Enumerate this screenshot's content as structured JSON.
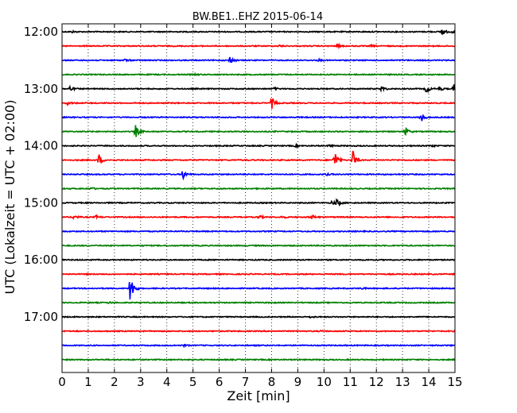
{
  "chart_data": {
    "type": "line",
    "title": "BW.BE1..EHZ 2015-06-14",
    "xlabel": "Zeit  [min]",
    "ylabel": "UTC (Lokalzeit = UTC + 02:00)",
    "xlim": [
      0,
      15
    ],
    "x_ticks": [
      "0",
      "1",
      "2",
      "3",
      "4",
      "5",
      "6",
      "7",
      "8",
      "9",
      "10",
      "11",
      "12",
      "13",
      "14",
      "15"
    ],
    "y_ticks": [
      "12:00",
      "13:00",
      "14:00",
      "15:00",
      "16:00",
      "17:00"
    ],
    "grid": "vertical dotted",
    "trace_interval_minutes": 15,
    "colors": [
      "#000000",
      "#ff0000",
      "#0000ff",
      "#008000"
    ],
    "series": [
      {
        "start": "12:00",
        "events": [
          {
            "t": 0.4,
            "amp": 0.12
          },
          {
            "t": 14.5,
            "amp": 0.55
          },
          {
            "t": 14.9,
            "amp": 0.15
          }
        ]
      },
      {
        "start": "12:15",
        "events": [
          {
            "t": 8.3,
            "amp": 0.12
          },
          {
            "t": 10.5,
            "amp": 0.25
          },
          {
            "t": 11.8,
            "amp": 0.1
          }
        ]
      },
      {
        "start": "12:30",
        "events": [
          {
            "t": 2.4,
            "amp": 0.15
          },
          {
            "t": 6.4,
            "amp": 0.55
          },
          {
            "t": 9.8,
            "amp": 0.12
          }
        ]
      },
      {
        "start": "12:45",
        "events": [
          {
            "t": 5.1,
            "amp": 0.08
          }
        ]
      },
      {
        "start": "13:00",
        "events": [
          {
            "t": 0.3,
            "amp": 0.35
          },
          {
            "t": 8.1,
            "amp": 0.15
          },
          {
            "t": 12.2,
            "amp": 0.4
          },
          {
            "t": 13.9,
            "amp": 0.6
          },
          {
            "t": 14.4,
            "amp": 0.3
          },
          {
            "t": 14.95,
            "amp": 0.7
          }
        ]
      },
      {
        "start": "13:15",
        "events": [
          {
            "t": 0.2,
            "amp": 0.25
          },
          {
            "t": 8.0,
            "amp": 0.85
          }
        ]
      },
      {
        "start": "13:30",
        "events": [
          {
            "t": 13.7,
            "amp": 0.75
          }
        ]
      },
      {
        "start": "13:45",
        "events": [
          {
            "t": 2.8,
            "amp": 0.95
          },
          {
            "t": 13.1,
            "amp": 0.6
          }
        ]
      },
      {
        "start": "14:00",
        "events": [
          {
            "t": 8.9,
            "amp": 0.12
          },
          {
            "t": 10.2,
            "amp": 0.15
          },
          {
            "t": 14.1,
            "amp": 0.15
          }
        ]
      },
      {
        "start": "14:15",
        "events": [
          {
            "t": 1.4,
            "amp": 0.8
          },
          {
            "t": 10.4,
            "amp": 1.5
          },
          {
            "t": 11.1,
            "amp": 1.4
          }
        ]
      },
      {
        "start": "14:30",
        "events": [
          {
            "t": 4.6,
            "amp": 0.8
          },
          {
            "t": 10.1,
            "amp": 0.12
          }
        ]
      },
      {
        "start": "14:45",
        "events": [
          {
            "t": 1.1,
            "amp": 0.18
          }
        ]
      },
      {
        "start": "15:00",
        "events": [
          {
            "t": 10.3,
            "amp": 0.3
          },
          {
            "t": 10.5,
            "amp": 0.5
          }
        ]
      },
      {
        "start": "15:15",
        "events": [
          {
            "t": 0.45,
            "amp": 0.3
          },
          {
            "t": 1.3,
            "amp": 0.2
          },
          {
            "t": 7.5,
            "amp": 0.3
          },
          {
            "t": 8.4,
            "amp": 0.2
          },
          {
            "t": 9.5,
            "amp": 0.45
          }
        ]
      },
      {
        "start": "15:30",
        "events": []
      },
      {
        "start": "15:45",
        "events": []
      },
      {
        "start": "16:00",
        "events": []
      },
      {
        "start": "16:15",
        "events": []
      },
      {
        "start": "16:30",
        "events": [
          {
            "t": 2.6,
            "amp": 2.3
          },
          {
            "t": 11.4,
            "amp": 0.15
          }
        ]
      },
      {
        "start": "16:45",
        "events": [
          {
            "t": 1.8,
            "amp": 0.1
          }
        ]
      },
      {
        "start": "17:00",
        "events": [
          {
            "t": 9.5,
            "amp": 0.12
          }
        ]
      },
      {
        "start": "17:15",
        "events": [
          {
            "t": 9.9,
            "amp": 0.08
          }
        ]
      },
      {
        "start": "17:30",
        "events": [
          {
            "t": 4.6,
            "amp": 0.15
          }
        ]
      },
      {
        "start": "17:45",
        "events": []
      }
    ]
  }
}
